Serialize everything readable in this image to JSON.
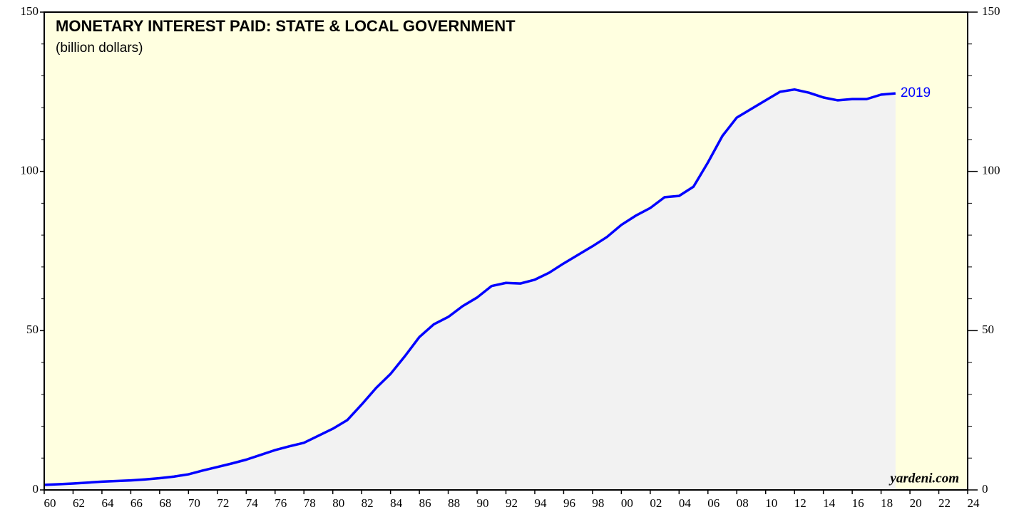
{
  "chart_data": {
    "type": "area-line",
    "title": "MONETARY INTEREST PAID: STATE & LOCAL GOVERNMENT",
    "subtitle": "(billion dollars)",
    "end_label": "2019",
    "source": "yardeni.com",
    "x": [
      1960,
      1961,
      1962,
      1963,
      1964,
      1965,
      1966,
      1967,
      1968,
      1969,
      1970,
      1971,
      1972,
      1973,
      1974,
      1975,
      1976,
      1977,
      1978,
      1979,
      1980,
      1981,
      1982,
      1983,
      1984,
      1985,
      1986,
      1987,
      1988,
      1989,
      1990,
      1991,
      1992,
      1993,
      1994,
      1995,
      1996,
      1997,
      1998,
      1999,
      2000,
      2001,
      2002,
      2003,
      2004,
      2005,
      2006,
      2007,
      2008,
      2009,
      2010,
      2011,
      2012,
      2013,
      2014,
      2015,
      2016,
      2017,
      2018,
      2019
    ],
    "series": [
      {
        "name": "Monetary interest paid",
        "color": "#0000ff",
        "fill": "#f2f2f2",
        "values": [
          1.6,
          1.8,
          2.0,
          2.3,
          2.6,
          2.8,
          3.0,
          3.3,
          3.7,
          4.2,
          4.9,
          6.1,
          7.2,
          8.3,
          9.5,
          11.0,
          12.5,
          13.7,
          14.8,
          17.0,
          19.2,
          21.9,
          26.8,
          32.0,
          36.4,
          42.0,
          48.0,
          52.0,
          54.3,
          57.7,
          60.4,
          64.0,
          65.0,
          64.8,
          66.0,
          68.2,
          71.1,
          73.8,
          76.5,
          79.4,
          83.2,
          86.1,
          88.5,
          91.9,
          92.3,
          95.2,
          102.8,
          111.1,
          116.9,
          119.6,
          122.3,
          125.0,
          125.7,
          124.7,
          123.2,
          122.3,
          122.7,
          122.7,
          124.1,
          124.5
        ]
      }
    ],
    "xlim": [
      1960,
      2024
    ],
    "xticks": [
      {
        "value": 1960,
        "label": "60"
      },
      {
        "value": 1962,
        "label": "62"
      },
      {
        "value": 1964,
        "label": "64"
      },
      {
        "value": 1966,
        "label": "66"
      },
      {
        "value": 1968,
        "label": "68"
      },
      {
        "value": 1970,
        "label": "70"
      },
      {
        "value": 1972,
        "label": "72"
      },
      {
        "value": 1974,
        "label": "74"
      },
      {
        "value": 1976,
        "label": "76"
      },
      {
        "value": 1978,
        "label": "78"
      },
      {
        "value": 1980,
        "label": "80"
      },
      {
        "value": 1982,
        "label": "82"
      },
      {
        "value": 1984,
        "label": "84"
      },
      {
        "value": 1986,
        "label": "86"
      },
      {
        "value": 1988,
        "label": "88"
      },
      {
        "value": 1990,
        "label": "90"
      },
      {
        "value": 1992,
        "label": "92"
      },
      {
        "value": 1994,
        "label": "94"
      },
      {
        "value": 1996,
        "label": "96"
      },
      {
        "value": 1998,
        "label": "98"
      },
      {
        "value": 2000,
        "label": "00"
      },
      {
        "value": 2002,
        "label": "02"
      },
      {
        "value": 2004,
        "label": "04"
      },
      {
        "value": 2006,
        "label": "06"
      },
      {
        "value": 2008,
        "label": "08"
      },
      {
        "value": 2010,
        "label": "10"
      },
      {
        "value": 2012,
        "label": "12"
      },
      {
        "value": 2014,
        "label": "14"
      },
      {
        "value": 2016,
        "label": "16"
      },
      {
        "value": 2018,
        "label": "18"
      },
      {
        "value": 2020,
        "label": "20"
      },
      {
        "value": 2022,
        "label": "22"
      },
      {
        "value": 2024,
        "label": "24"
      }
    ],
    "ylim": [
      0,
      150
    ],
    "yticks": [
      0,
      50,
      100,
      150
    ],
    "y_minor_ticks": [
      10,
      20,
      30,
      40,
      60,
      70,
      80,
      90,
      110,
      120,
      130,
      140
    ],
    "background": "#ffffe0"
  }
}
